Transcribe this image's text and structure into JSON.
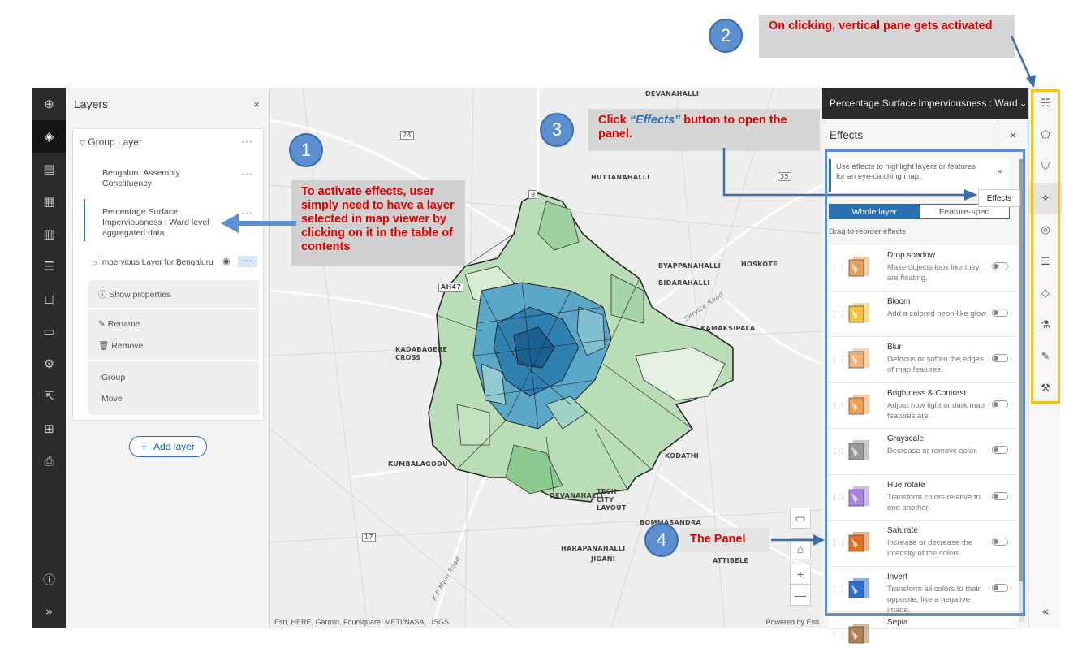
{
  "left_toolbar": {
    "icons": [
      "add-icon",
      "layers-icon",
      "table-icon",
      "grid-icon",
      "chart-icon",
      "list-icon",
      "bookmark-icon",
      "folder-icon",
      "settings-icon",
      "share-icon",
      "apps-icon",
      "print-icon",
      "info-icon",
      "expand-icon"
    ]
  },
  "layers": {
    "title": "Layers",
    "close": "×",
    "group_label": "Group Layer",
    "items": [
      {
        "label": "Bengaluru Assembly Constituency"
      },
      {
        "label": "Percentage Surface Imperviousness : Ward level aggregated data"
      },
      {
        "label": "Impervious Layer for Bengaluru"
      }
    ],
    "menu": {
      "show_properties": "Show properties",
      "rename": "Rename",
      "remove": "Remove",
      "group": "Group",
      "move": "Move"
    },
    "add_layer": "Add layer",
    "add_icon": "+",
    "more": "···"
  },
  "map": {
    "labels": [
      {
        "text": "DEVANAHALLI"
      },
      {
        "text": "HUTTANAHALLI"
      },
      {
        "text": "BYAPPANAHALLI"
      },
      {
        "text": "HOSKOTE"
      },
      {
        "text": "BIDARAHALLI"
      },
      {
        "text": "KADABAGERE CROSS"
      },
      {
        "text": "KAMAKSIPALA"
      },
      {
        "text": "KUMBALAGODU"
      },
      {
        "text": "KODATHI"
      },
      {
        "text": "TECH CITY LAYOUT"
      },
      {
        "text": "DEVANAHALLI"
      },
      {
        "text": "BOMMASANDRA"
      },
      {
        "text": "HARAPANAHALLI"
      },
      {
        "text": "JIGANI"
      },
      {
        "text": "ATTIBELE"
      },
      {
        "text": "AH47"
      },
      {
        "text": "Service Road"
      },
      {
        "text": "K P Main Road"
      },
      {
        "text": "74"
      },
      {
        "text": "35"
      },
      {
        "text": "9"
      },
      {
        "text": "17"
      }
    ],
    "attribution": "Esri, HERE, Garmin, Foursquare, METI/NASA, USGS",
    "powered_by": "Powered by Esri",
    "controls": [
      "monitor-icon",
      "home-icon",
      "zoom-in-icon",
      "zoom-out-icon"
    ],
    "zoom_in": "+",
    "zoom_out": "—"
  },
  "effects_panel": {
    "layer_title": "Percentage Surface Imperviousness : Ward",
    "chevron": "⌄",
    "heading": "Effects",
    "close": "×",
    "notice": "Use effects to highlight layers or features for an eye-catching map.",
    "notice_close": "×",
    "tabs": [
      "Whole layer",
      "Feature-spec"
    ],
    "drag_hint": "Drag to reorder effects",
    "items": [
      {
        "name": "Drop shadow",
        "desc": "Make objects look like they are floating.",
        "color": "#e8a25a"
      },
      {
        "name": "Bloom",
        "desc": "Add a colored neon-like glow.",
        "color": "#f0c040"
      },
      {
        "name": "Blur",
        "desc": "Defocus or soften the edges of map features.",
        "color": "#f0b070"
      },
      {
        "name": "Brightness & Contrast",
        "desc": "Adjust how light or dark map features are.",
        "color": "#f0a050"
      },
      {
        "name": "Grayscale",
        "desc": "Decrease or remove color.",
        "color": "#9a9a9a"
      },
      {
        "name": "Hue rotate",
        "desc": "Transform colors relative to one another.",
        "color": "#a884e0"
      },
      {
        "name": "Saturate",
        "desc": "Increase or decrease the intensity of the colors.",
        "color": "#e07020"
      },
      {
        "name": "Invert",
        "desc": "Transform all colors to their opposite, like a negative image.",
        "color": "#2a6fd0"
      },
      {
        "name": "Sepia",
        "desc": "",
        "color": "#b08050"
      }
    ]
  },
  "right_pane": {
    "icons": [
      "properties-icon",
      "styles-icon",
      "filter-icon",
      "effects-icon",
      "blending-icon",
      "fields-icon",
      "labels-icon",
      "popups-icon",
      "edit-icon",
      "configure-icon"
    ],
    "collapse": "«"
  },
  "tooltip": {
    "effects": "Effects"
  },
  "annotations": [
    {
      "num": "1",
      "text": "To activate effects, user simply need to have a layer selected in map viewer by clicking on it in the table of contents"
    },
    {
      "num": "2",
      "text": "On clicking, vertical pane gets activated"
    },
    {
      "num": "3",
      "text_pre": "Click ",
      "text_em": "“Effects”",
      "text_post": " button to open the panel."
    },
    {
      "num": "4",
      "text": "The Panel"
    }
  ],
  "colors": {
    "accent": "#2b6fb3",
    "annotation_red": "#e00000",
    "highlight_yellow": "#f4c21a",
    "callout_blue": "#5b8fd0"
  }
}
